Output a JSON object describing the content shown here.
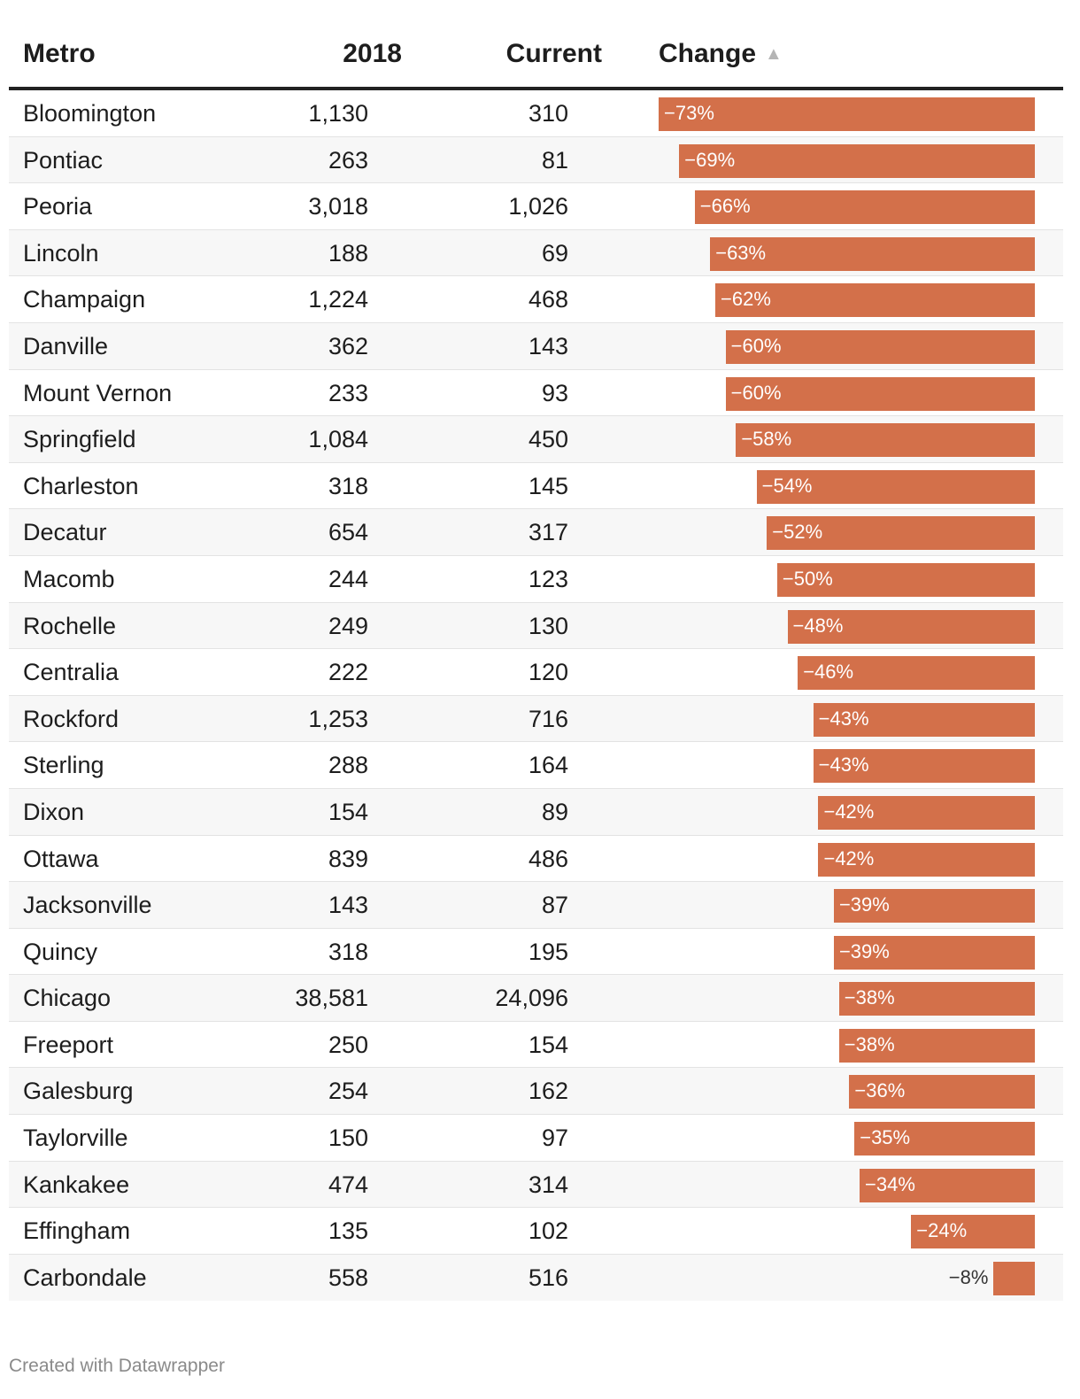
{
  "header": {
    "metro": "Metro",
    "y2018": "2018",
    "current": "Current",
    "change": "Change",
    "sort_indicator": "▲"
  },
  "footer": {
    "credit": "Created with Datawrapper"
  },
  "colors": {
    "bar": "#d3704a",
    "header_rule": "#222222",
    "zebra": "#f7f7f7"
  },
  "chart_data": {
    "type": "table",
    "columns": [
      "Metro",
      "2018",
      "Current",
      "Change"
    ],
    "change_bar_range": [
      -73,
      0
    ],
    "rows": [
      {
        "metro": "Bloomington",
        "y2018": "1,130",
        "current": "310",
        "change": -73,
        "change_label": "−73%"
      },
      {
        "metro": "Pontiac",
        "y2018": "263",
        "current": "81",
        "change": -69,
        "change_label": "−69%"
      },
      {
        "metro": "Peoria",
        "y2018": "3,018",
        "current": "1,026",
        "change": -66,
        "change_label": "−66%"
      },
      {
        "metro": "Lincoln",
        "y2018": "188",
        "current": "69",
        "change": -63,
        "change_label": "−63%"
      },
      {
        "metro": "Champaign",
        "y2018": "1,224",
        "current": "468",
        "change": -62,
        "change_label": "−62%"
      },
      {
        "metro": "Danville",
        "y2018": "362",
        "current": "143",
        "change": -60,
        "change_label": "−60%"
      },
      {
        "metro": "Mount Vernon",
        "y2018": "233",
        "current": "93",
        "change": -60,
        "change_label": "−60%"
      },
      {
        "metro": "Springfield",
        "y2018": "1,084",
        "current": "450",
        "change": -58,
        "change_label": "−58%"
      },
      {
        "metro": "Charleston",
        "y2018": "318",
        "current": "145",
        "change": -54,
        "change_label": "−54%"
      },
      {
        "metro": "Decatur",
        "y2018": "654",
        "current": "317",
        "change": -52,
        "change_label": "−52%"
      },
      {
        "metro": "Macomb",
        "y2018": "244",
        "current": "123",
        "change": -50,
        "change_label": "−50%"
      },
      {
        "metro": "Rochelle",
        "y2018": "249",
        "current": "130",
        "change": -48,
        "change_label": "−48%"
      },
      {
        "metro": "Centralia",
        "y2018": "222",
        "current": "120",
        "change": -46,
        "change_label": "−46%"
      },
      {
        "metro": "Rockford",
        "y2018": "1,253",
        "current": "716",
        "change": -43,
        "change_label": "−43%"
      },
      {
        "metro": "Sterling",
        "y2018": "288",
        "current": "164",
        "change": -43,
        "change_label": "−43%"
      },
      {
        "metro": "Dixon",
        "y2018": "154",
        "current": "89",
        "change": -42,
        "change_label": "−42%"
      },
      {
        "metro": "Ottawa",
        "y2018": "839",
        "current": "486",
        "change": -42,
        "change_label": "−42%"
      },
      {
        "metro": "Jacksonville",
        "y2018": "143",
        "current": "87",
        "change": -39,
        "change_label": "−39%"
      },
      {
        "metro": "Quincy",
        "y2018": "318",
        "current": "195",
        "change": -39,
        "change_label": "−39%"
      },
      {
        "metro": "Chicago",
        "y2018": "38,581",
        "current": "24,096",
        "change": -38,
        "change_label": "−38%"
      },
      {
        "metro": "Freeport",
        "y2018": "250",
        "current": "154",
        "change": -38,
        "change_label": "−38%"
      },
      {
        "metro": "Galesburg",
        "y2018": "254",
        "current": "162",
        "change": -36,
        "change_label": "−36%"
      },
      {
        "metro": "Taylorville",
        "y2018": "150",
        "current": "97",
        "change": -35,
        "change_label": "−35%"
      },
      {
        "metro": "Kankakee",
        "y2018": "474",
        "current": "314",
        "change": -34,
        "change_label": "−34%"
      },
      {
        "metro": "Effingham",
        "y2018": "135",
        "current": "102",
        "change": -24,
        "change_label": "−24%"
      },
      {
        "metro": "Carbondale",
        "y2018": "558",
        "current": "516",
        "change": -8,
        "change_label": "−8%"
      }
    ]
  }
}
